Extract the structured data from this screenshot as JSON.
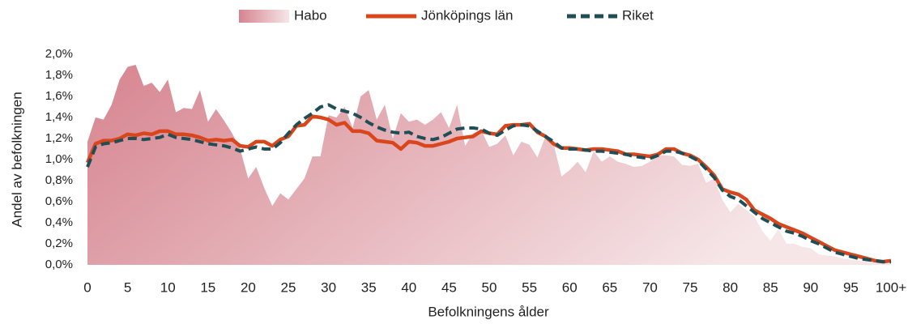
{
  "chart_data": {
    "type": "line",
    "y_label": "Andel av befolkningen",
    "x_label": "Befolkningens ålder",
    "categories": [
      "0",
      null,
      null,
      null,
      null,
      "5",
      null,
      null,
      null,
      null,
      "10",
      null,
      null,
      null,
      null,
      "15",
      null,
      null,
      null,
      null,
      "20",
      null,
      null,
      null,
      null,
      "25",
      null,
      null,
      null,
      null,
      "30",
      null,
      null,
      null,
      null,
      "35",
      null,
      null,
      null,
      null,
      "40",
      null,
      null,
      null,
      null,
      "45",
      null,
      null,
      null,
      null,
      "50",
      null,
      null,
      null,
      null,
      "55",
      null,
      null,
      null,
      null,
      "60",
      null,
      null,
      null,
      null,
      "65",
      null,
      null,
      null,
      null,
      "70",
      null,
      null,
      null,
      null,
      "75",
      null,
      null,
      null,
      null,
      "80",
      null,
      null,
      null,
      null,
      "85",
      null,
      null,
      null,
      null,
      "90",
      null,
      null,
      null,
      null,
      "95",
      null,
      null,
      null,
      null,
      "100+"
    ],
    "series": [
      {
        "name": "Habo",
        "color": "#d6848f",
        "style": "area",
        "values": [
          1.17,
          1.4,
          1.38,
          1.52,
          1.76,
          1.88,
          1.9,
          1.7,
          1.73,
          1.64,
          1.76,
          1.45,
          1.49,
          1.48,
          1.66,
          1.36,
          1.48,
          1.37,
          1.25,
          1.1,
          0.82,
          0.93,
          0.73,
          0.56,
          0.68,
          0.62,
          0.72,
          0.82,
          1.03,
          1.03,
          1.42,
          1.4,
          1.5,
          1.3,
          1.6,
          1.66,
          1.38,
          1.52,
          1.2,
          1.44,
          1.36,
          1.38,
          1.33,
          1.38,
          1.45,
          1.3,
          1.52,
          1.13,
          1.25,
          1.28,
          1.12,
          1.15,
          1.23,
          1.04,
          1.17,
          1.14,
          1.02,
          1.22,
          1.15,
          0.84,
          0.9,
          0.98,
          0.88,
          1.08,
          0.98,
          1.03,
          0.98,
          0.96,
          0.93,
          0.94,
          0.98,
          1.04,
          1.04,
          1.03,
          0.95,
          0.94,
          0.96,
          0.78,
          0.82,
          0.62,
          0.5,
          0.58,
          0.52,
          0.46,
          0.32,
          0.23,
          0.34,
          0.2,
          0.2,
          0.17,
          0.16,
          0.1,
          0.09,
          0.08,
          0.06,
          0.05,
          0.04,
          0.03,
          0.02,
          0.02,
          0.03
        ]
      },
      {
        "name": "Jönköpings län",
        "color": "#d9461c",
        "style": "solid",
        "values": [
          0.97,
          1.15,
          1.18,
          1.18,
          1.2,
          1.24,
          1.23,
          1.25,
          1.24,
          1.27,
          1.27,
          1.24,
          1.24,
          1.23,
          1.21,
          1.18,
          1.19,
          1.18,
          1.19,
          1.13,
          1.12,
          1.17,
          1.17,
          1.13,
          1.19,
          1.22,
          1.32,
          1.33,
          1.41,
          1.4,
          1.38,
          1.33,
          1.35,
          1.27,
          1.27,
          1.25,
          1.18,
          1.17,
          1.16,
          1.1,
          1.17,
          1.16,
          1.13,
          1.13,
          1.15,
          1.17,
          1.2,
          1.21,
          1.22,
          1.27,
          1.25,
          1.24,
          1.32,
          1.33,
          1.33,
          1.34,
          1.26,
          1.22,
          1.15,
          1.11,
          1.11,
          1.1,
          1.09,
          1.1,
          1.1,
          1.09,
          1.08,
          1.05,
          1.05,
          1.04,
          1.03,
          1.05,
          1.1,
          1.1,
          1.06,
          1.04,
          1.0,
          0.93,
          0.85,
          0.72,
          0.69,
          0.67,
          0.62,
          0.52,
          0.48,
          0.44,
          0.39,
          0.36,
          0.33,
          0.3,
          0.26,
          0.22,
          0.18,
          0.14,
          0.12,
          0.1,
          0.08,
          0.06,
          0.04,
          0.03,
          0.04
        ]
      },
      {
        "name": "Riket",
        "color": "#1f4e55",
        "style": "dashed",
        "values": [
          0.93,
          1.12,
          1.15,
          1.16,
          1.18,
          1.2,
          1.2,
          1.19,
          1.2,
          1.21,
          1.24,
          1.21,
          1.2,
          1.19,
          1.17,
          1.15,
          1.14,
          1.13,
          1.11,
          1.08,
          1.1,
          1.12,
          1.1,
          1.1,
          1.16,
          1.25,
          1.33,
          1.39,
          1.44,
          1.5,
          1.52,
          1.48,
          1.46,
          1.44,
          1.4,
          1.35,
          1.31,
          1.28,
          1.26,
          1.25,
          1.26,
          1.22,
          1.2,
          1.19,
          1.21,
          1.25,
          1.29,
          1.3,
          1.3,
          1.29,
          1.25,
          1.23,
          1.28,
          1.32,
          1.33,
          1.32,
          1.27,
          1.22,
          1.17,
          1.11,
          1.1,
          1.1,
          1.09,
          1.08,
          1.08,
          1.07,
          1.06,
          1.05,
          1.03,
          1.02,
          1.01,
          1.04,
          1.08,
          1.08,
          1.06,
          1.03,
          0.99,
          0.91,
          0.83,
          0.71,
          0.65,
          0.62,
          0.56,
          0.5,
          0.44,
          0.4,
          0.36,
          0.32,
          0.3,
          0.27,
          0.23,
          0.2,
          0.16,
          0.12,
          0.1,
          0.08,
          0.06,
          0.05,
          0.04,
          0.03,
          0.03
        ]
      }
    ],
    "ylim": [
      0,
      2.0
    ],
    "yticks": [
      {
        "value": 0,
        "label": "0,0%"
      },
      {
        "value": 0.2,
        "label": "0,2%"
      },
      {
        "value": 0.4,
        "label": "0,4%"
      },
      {
        "value": 0.6,
        "label": "0,6%"
      },
      {
        "value": 0.8,
        "label": "0,8%"
      },
      {
        "value": 1.0,
        "label": "1,0%"
      },
      {
        "value": 1.2,
        "label": "1,2%"
      },
      {
        "value": 1.4,
        "label": "1,4%"
      },
      {
        "value": 1.6,
        "label": "1,6%"
      },
      {
        "value": 1.8,
        "label": "1,8%"
      },
      {
        "value": 2.0,
        "label": "2,0%"
      }
    ],
    "grid": false,
    "legend": "top"
  }
}
